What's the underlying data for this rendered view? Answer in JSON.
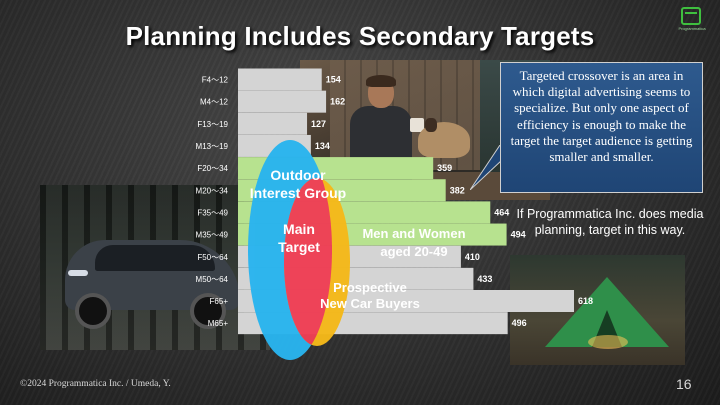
{
  "title": "Planning Includes Secondary Targets",
  "logo_text": "Programmatica",
  "chart_data": {
    "type": "bar",
    "orientation": "horizontal",
    "categories": [
      "F4～12",
      "M4～12",
      "F13～19",
      "M13～19",
      "F20～34",
      "M20～34",
      "F35～49",
      "M35～49",
      "F50～64",
      "M50～64",
      "F65+",
      "M65+"
    ],
    "values": [
      154,
      162,
      127,
      134,
      359,
      382,
      464,
      494,
      410,
      433,
      618,
      496
    ],
    "xlim": [
      0,
      650
    ],
    "colors": {
      "default": "#d4d4d4",
      "segment": "#b7e28f",
      "callout": "#1f4575",
      "venn_outdoor": "#29b4ee",
      "venn_main": "#ef3f55",
      "venn_car": "#f5b91a"
    },
    "highlight_ranges": [
      [
        4,
        7
      ]
    ],
    "venn": {
      "outdoor": "Outdoor\nInterest Group",
      "main": "Main\nTarget",
      "segment": "Men and Women\naged 20-49",
      "car": "Prospective\nNew Car Buyers"
    }
  },
  "callout": {
    "text": "Targeted crossover is an area in which digital advertising seems to specialize. But only one aspect of efficiency is enough to make the target the target audience is getting smaller and smaller."
  },
  "note": "If Programmatica Inc. does media planning, target in this way.",
  "footer": "©2024  Programmatica Inc. / Umeda, Y.",
  "page_number": "16"
}
